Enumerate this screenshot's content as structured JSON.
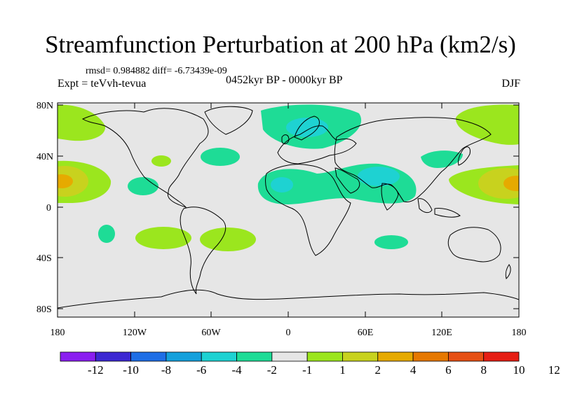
{
  "title": "Streamfunction Perturbation at 200 hPa (km2/s)",
  "stats": "rmsd= 0.984882  diff= -6.73439e-09",
  "experiment": "Expt = teVvh-tevua",
  "period": "0452kyr BP - 0000kyr BP",
  "season": "DJF",
  "lat_ticks": [
    "80N",
    "40N",
    "0",
    "40S",
    "80S"
  ],
  "lon_ticks": [
    "180",
    "120W",
    "60W",
    "0",
    "60E",
    "120E",
    "180"
  ],
  "colorbar": {
    "labels": [
      "-12",
      "-10",
      "-8",
      "-6",
      "-4",
      "-2",
      "-1",
      "1",
      "2",
      "4",
      "6",
      "8",
      "10",
      "12"
    ],
    "colors": [
      "#8a1ef0",
      "#3c28d2",
      "#1e6ee6",
      "#14a0dc",
      "#1ed2d2",
      "#1edc96",
      "#e6e6e6",
      "#9be61e",
      "#c8d21e",
      "#e6aa00",
      "#e67800",
      "#e65014",
      "#e61e14"
    ]
  },
  "colors": {
    "background": "#e6e6e6",
    "land_outline": "#000000"
  }
}
